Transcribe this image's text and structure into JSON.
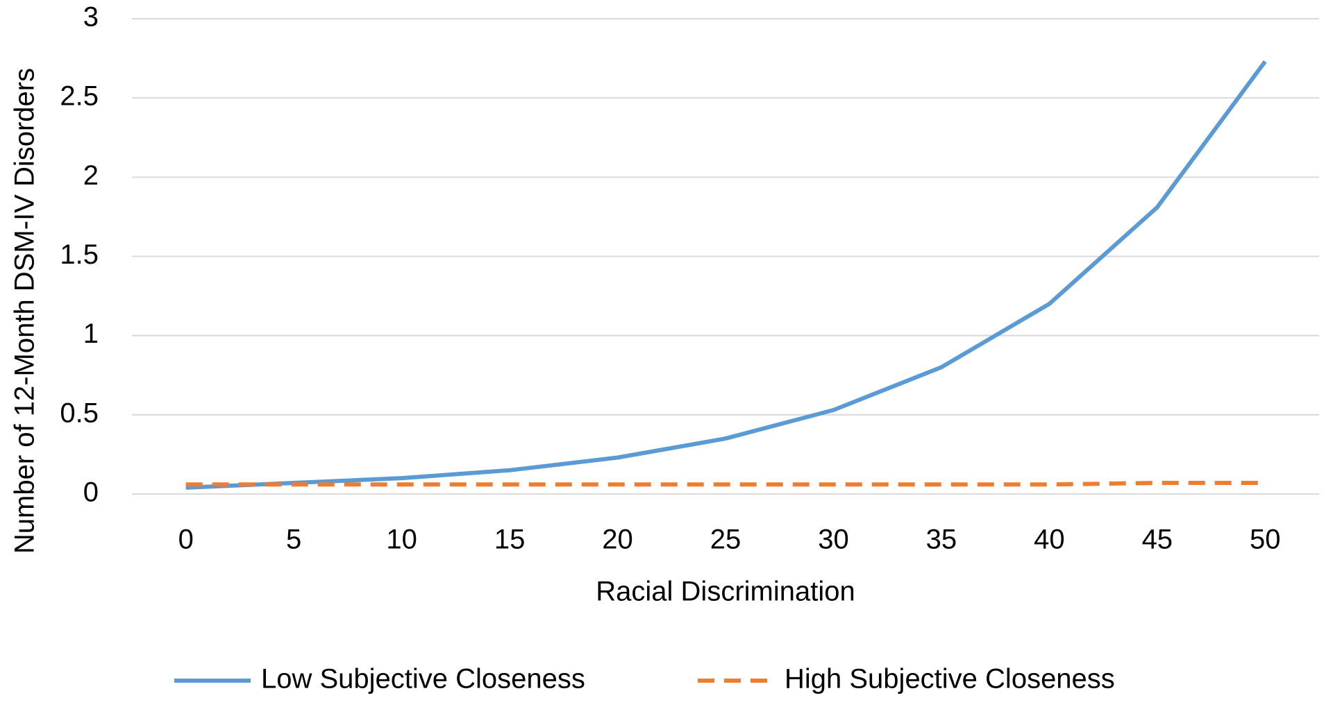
{
  "chart_data": {
    "type": "line",
    "ylabel": "Number of 12-Month DSM-IV Disorders",
    "xlabel": "Racial Discrimination",
    "categories": [
      "0",
      "5",
      "10",
      "15",
      "20",
      "25",
      "30",
      "35",
      "40",
      "45",
      "50"
    ],
    "series": [
      {
        "name": "Low Subjective Closeness",
        "color": "#5b9bd5",
        "dashed": false,
        "values": [
          0.04,
          0.07,
          0.1,
          0.15,
          0.23,
          0.35,
          0.53,
          0.8,
          1.2,
          1.81,
          2.73
        ]
      },
      {
        "name": "High Subjective Closeness",
        "color": "#ed7d31",
        "dashed": true,
        "values": [
          0.06,
          0.06,
          0.06,
          0.06,
          0.06,
          0.06,
          0.06,
          0.06,
          0.06,
          0.07,
          0.07
        ]
      }
    ],
    "ylim": [
      0,
      3
    ],
    "yticks": [
      0,
      0.5,
      1,
      1.5,
      2,
      2.5,
      3
    ],
    "grid": true,
    "legend": "bottom"
  }
}
